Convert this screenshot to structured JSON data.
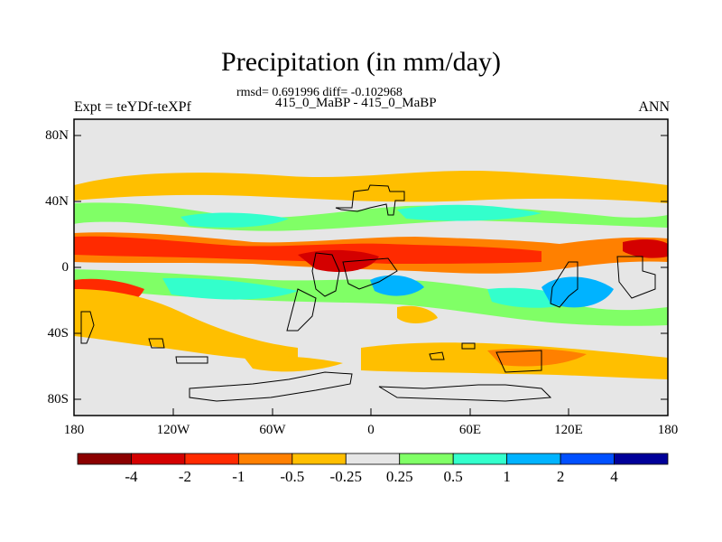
{
  "title": "Precipitation (in mm/day)",
  "stats": "rmsd= 0.691996 diff= -0.102968",
  "case": "415_0_MaBP - 415_0_MaBP",
  "expt": "Expt = teYDf-teXPf",
  "season": "ANN",
  "lat_labels": [
    "80N",
    "40N",
    "0",
    "40S",
    "80S"
  ],
  "lon_labels": [
    "180",
    "120W",
    "60W",
    "0",
    "60E",
    "120E",
    "180"
  ],
  "colorbar": {
    "labels": [
      "-4",
      "-2",
      "-1",
      "-0.5",
      "-0.25",
      "0.25",
      "0.5",
      "1",
      "2",
      "4"
    ],
    "colors": [
      "#8b0000",
      "#d40000",
      "#ff2a00",
      "#ff8000",
      "#ffbf00",
      "#e6e6e6",
      "#80ff66",
      "#33ffcc",
      "#00b3ff",
      "#0050ff",
      "#000099"
    ]
  }
}
